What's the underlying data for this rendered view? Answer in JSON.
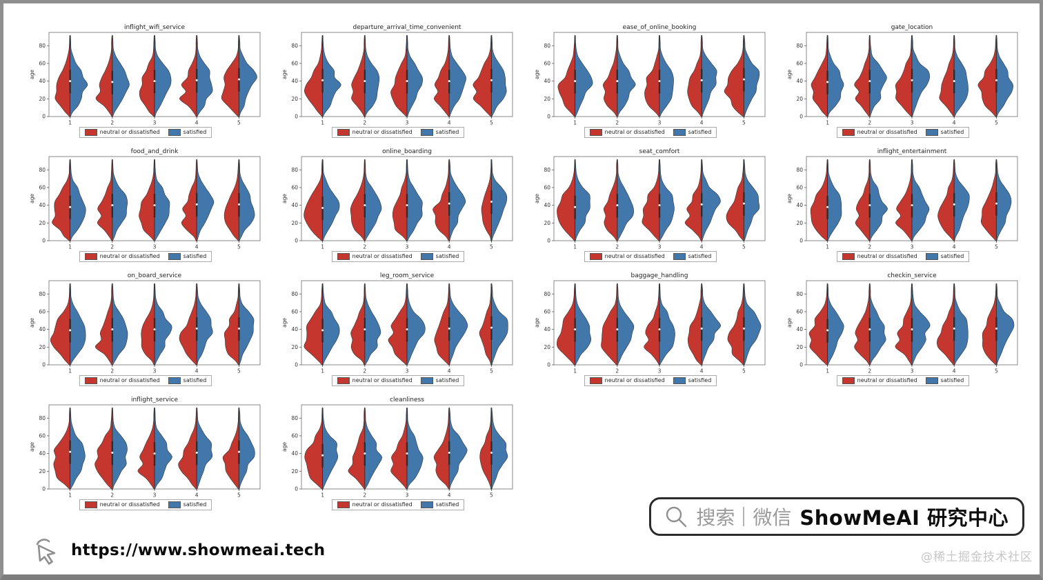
{
  "chart_data": {
    "type": "violin",
    "layout": {
      "rows": 4,
      "cols": 4,
      "filled_cells": 14
    },
    "categories": [
      "1",
      "2",
      "3",
      "4",
      "5"
    ],
    "xlabel": "",
    "ylabel": "age",
    "yticks": [
      0,
      20,
      40,
      60,
      80
    ],
    "ylim": [
      0,
      95
    ],
    "grid": false,
    "legend_position": "below each subplot",
    "legend": [
      {
        "label": "neutral or dissatisfied",
        "color": "#c5372e"
      },
      {
        "label": "satisfied",
        "color": "#4277ac"
      }
    ],
    "colors": {
      "dissatisfied": "#c5372e",
      "satisfied": "#4277ac",
      "violin_outline": "#333333",
      "inner_marks": "#2e2e2e",
      "median_dot": "#ffffff",
      "spine": "#898989"
    },
    "profile_ages": [
      0,
      5,
      12,
      20,
      28,
      36,
      44,
      52,
      60,
      68,
      76,
      84,
      91
    ],
    "profiles": {
      "redA": [
        0.03,
        0.25,
        0.55,
        0.78,
        0.88,
        0.8,
        0.62,
        0.45,
        0.28,
        0.13,
        0.06,
        0.04,
        0.02
      ],
      "redB": [
        0.03,
        0.2,
        0.5,
        0.82,
        0.68,
        0.78,
        0.58,
        0.42,
        0.25,
        0.11,
        0.05,
        0.04,
        0.02
      ],
      "redC": [
        0.04,
        0.3,
        0.62,
        0.88,
        0.95,
        0.88,
        0.78,
        0.6,
        0.35,
        0.15,
        0.06,
        0.04,
        0.02
      ],
      "blueA": [
        0.02,
        0.12,
        0.3,
        0.52,
        0.68,
        0.85,
        0.88,
        0.7,
        0.42,
        0.18,
        0.07,
        0.04,
        0.02
      ],
      "blueB": [
        0.02,
        0.15,
        0.38,
        0.62,
        0.78,
        0.88,
        0.75,
        0.62,
        0.38,
        0.16,
        0.06,
        0.04,
        0.02
      ],
      "blueC": [
        0.02,
        0.1,
        0.25,
        0.42,
        0.58,
        0.78,
        0.92,
        0.8,
        0.5,
        0.22,
        0.08,
        0.05,
        0.02
      ],
      "slim": [
        0.02,
        0.1,
        0.28,
        0.45,
        0.55,
        0.6,
        0.52,
        0.4,
        0.24,
        0.1,
        0.05,
        0.03,
        0.02
      ]
    },
    "subplots": [
      {
        "title": "inflight_wifi_service",
        "violins": [
          {
            "l": "redA",
            "r": "blueB",
            "m": 40
          },
          {
            "l": "redB",
            "r": "blueA",
            "m": 39
          },
          {
            "l": "redA",
            "r": "blueA",
            "m": 40
          },
          {
            "l": "redB",
            "r": "blueB",
            "m": 41
          },
          {
            "l": "redC",
            "r": "blueC",
            "m": 42
          }
        ]
      },
      {
        "title": "departure_arrival_time_convenient",
        "violins": [
          {
            "l": "redA",
            "r": "blueB",
            "m": 41
          },
          {
            "l": "redB",
            "r": "blueB",
            "m": 40
          },
          {
            "l": "redA",
            "r": "blueA",
            "m": 40
          },
          {
            "l": "redB",
            "r": "blueA",
            "m": 40
          },
          {
            "l": "redC",
            "r": "blueB",
            "m": 41
          }
        ]
      },
      {
        "title": "ease_of_online_booking",
        "violins": [
          {
            "l": "redA",
            "r": "blueA",
            "m": 40
          },
          {
            "l": "redB",
            "r": "blueB",
            "m": 40
          },
          {
            "l": "redA",
            "r": "blueB",
            "m": 40
          },
          {
            "l": "redB",
            "r": "blueC",
            "m": 41
          },
          {
            "l": "redC",
            "r": "blueC",
            "m": 42
          }
        ]
      },
      {
        "title": "gate_location",
        "violins": [
          {
            "l": "redA",
            "r": "blueB",
            "m": 39
          },
          {
            "l": "redB",
            "r": "blueA",
            "m": 40
          },
          {
            "l": "redA",
            "r": "blueC",
            "m": 41
          },
          {
            "l": "redB",
            "r": "blueB",
            "m": 40
          },
          {
            "l": "redC",
            "r": "blueB",
            "m": 41
          }
        ]
      },
      {
        "title": "food_and_drink",
        "violins": [
          {
            "l": "redC",
            "r": "blueB",
            "m": 38
          },
          {
            "l": "redB",
            "r": "blueA",
            "m": 40
          },
          {
            "l": "redA",
            "r": "blueB",
            "m": 40
          },
          {
            "l": "redB",
            "r": "blueC",
            "m": 41
          },
          {
            "l": "redA",
            "r": "blueB",
            "m": 41
          }
        ]
      },
      {
        "title": "online_boarding",
        "violins": [
          {
            "l": "redC",
            "r": "blueA",
            "m": 37
          },
          {
            "l": "redB",
            "r": "blueB",
            "m": 40
          },
          {
            "l": "redA",
            "r": "blueB",
            "m": 40
          },
          {
            "l": "redB",
            "r": "blueC",
            "m": 42
          },
          {
            "l": "slim",
            "r": "blueC",
            "m": 44
          }
        ]
      },
      {
        "title": "seat_comfort",
        "violins": [
          {
            "l": "redC",
            "r": "blueA",
            "m": 38
          },
          {
            "l": "redB",
            "r": "blueB",
            "m": 40
          },
          {
            "l": "redC",
            "r": "blueB",
            "m": 40
          },
          {
            "l": "redB",
            "r": "blueC",
            "m": 41
          },
          {
            "l": "redA",
            "r": "blueC",
            "m": 42
          }
        ]
      },
      {
        "title": "inflight_entertainment",
        "violins": [
          {
            "l": "redC",
            "r": "blueA",
            "m": 38
          },
          {
            "l": "redB",
            "r": "blueB",
            "m": 40
          },
          {
            "l": "redB",
            "r": "blueB",
            "m": 40
          },
          {
            "l": "redA",
            "r": "blueC",
            "m": 41
          },
          {
            "l": "redA",
            "r": "blueC",
            "m": 42
          }
        ]
      },
      {
        "title": "on_board_service",
        "violins": [
          {
            "l": "redC",
            "r": "blueB",
            "m": 39
          },
          {
            "l": "redB",
            "r": "blueB",
            "m": 40
          },
          {
            "l": "redB",
            "r": "blueA",
            "m": 40
          },
          {
            "l": "redA",
            "r": "blueC",
            "m": 41
          },
          {
            "l": "redA",
            "r": "blueC",
            "m": 41
          }
        ]
      },
      {
        "title": "leg_room_service",
        "violins": [
          {
            "l": "redC",
            "r": "blueA",
            "m": 39
          },
          {
            "l": "redB",
            "r": "blueB",
            "m": 40
          },
          {
            "l": "redC",
            "r": "blueA",
            "m": 40
          },
          {
            "l": "redA",
            "r": "blueC",
            "m": 41
          },
          {
            "l": "slim",
            "r": "blueC",
            "m": 42
          }
        ]
      },
      {
        "title": "baggage_handling",
        "violins": [
          {
            "l": "redC",
            "r": "blueB",
            "m": 40
          },
          {
            "l": "redC",
            "r": "blueA",
            "m": 40
          },
          {
            "l": "redB",
            "r": "blueB",
            "m": 40
          },
          {
            "l": "redA",
            "r": "blueC",
            "m": 41
          },
          {
            "l": "redA",
            "r": "blueC",
            "m": 41
          }
        ]
      },
      {
        "title": "checkin_service",
        "violins": [
          {
            "l": "redC",
            "r": "blueA",
            "m": 39
          },
          {
            "l": "redB",
            "r": "blueB",
            "m": 40
          },
          {
            "l": "redB",
            "r": "blueA",
            "m": 40
          },
          {
            "l": "redA",
            "r": "blueB",
            "m": 41
          },
          {
            "l": "redA",
            "r": "blueC",
            "m": 41
          }
        ]
      },
      {
        "title": "inflight_service",
        "violins": [
          {
            "l": "redC",
            "r": "blueB",
            "m": 42
          },
          {
            "l": "redC",
            "r": "blueA",
            "m": 41
          },
          {
            "l": "redB",
            "r": "blueB",
            "m": 40
          },
          {
            "l": "redA",
            "r": "blueC",
            "m": 41
          },
          {
            "l": "redB",
            "r": "blueC",
            "m": 42
          }
        ]
      },
      {
        "title": "cleanliness",
        "violins": [
          {
            "l": "redC",
            "r": "blueA",
            "m": 38
          },
          {
            "l": "redB",
            "r": "blueB",
            "m": 40
          },
          {
            "l": "redA",
            "r": "blueB",
            "m": 40
          },
          {
            "l": "redB",
            "r": "blueC",
            "m": 41
          },
          {
            "l": "slim",
            "r": "blueC",
            "m": 41
          }
        ]
      }
    ]
  },
  "watermark": {
    "url": "https://www.showmeai.tech"
  },
  "wechat_badge": {
    "search": "搜索",
    "app": "微信",
    "brand": "ShowMeAI 研究中心"
  },
  "attribution": "@稀土掘金技术社区"
}
